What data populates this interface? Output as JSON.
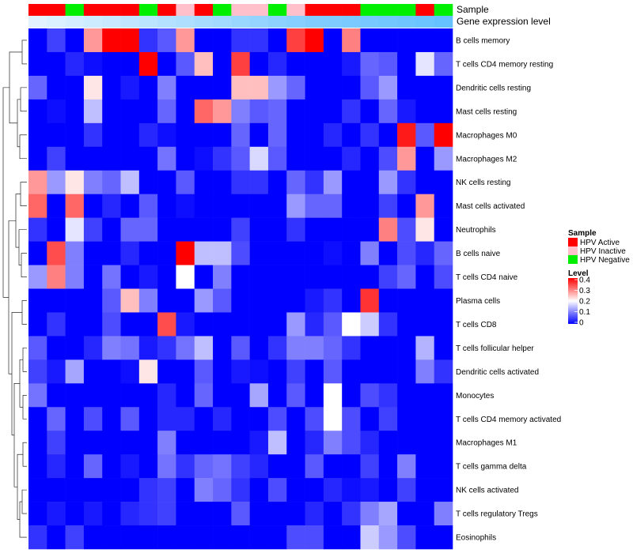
{
  "chart_data": {
    "type": "heatmap",
    "annotations": {
      "sample_label": "Sample",
      "gene_label": "Gene expression level",
      "sample": [
        "Active",
        "Active",
        "Negative",
        "Active",
        "Active",
        "Active",
        "Negative",
        "Active",
        "Inactive",
        "Active",
        "Negative",
        "Inactive",
        "Inactive",
        "Negative",
        "Inactive",
        "Active",
        "Active",
        "Active",
        "Negative",
        "Negative",
        "Negative",
        "Active",
        "Negative"
      ],
      "gene_expression": [
        0.05,
        0.1,
        0.15,
        0.2,
        0.25,
        0.3,
        0.35,
        0.4,
        0.45,
        0.5,
        0.55,
        0.6,
        0.65,
        0.7,
        0.75,
        0.8,
        0.82,
        0.85,
        0.88,
        0.9,
        0.93,
        0.96,
        1.0
      ]
    },
    "rows": [
      "B cells memory",
      "T cells CD4 memory resting",
      "Dendritic cells resting",
      "Mast cells resting",
      "Macrophages M0",
      "Macrophages M2",
      "NK cells resting",
      "Mast cells activated",
      "Neutrophils",
      "B cells naive",
      "T cells CD4 naive",
      "Plasma cells",
      "T cells CD8",
      "T cells follicular helper",
      "Dendritic cells activated",
      "Monocytes",
      "T cells CD4 memory activated",
      "Macrophages M1",
      "T cells gamma delta",
      "NK cells activated",
      "T cells regulatory  Tregs",
      "Eosinophils"
    ],
    "values": [
      [
        0,
        0.05,
        0,
        0.28,
        0.4,
        0.4,
        0.04,
        0.07,
        0.28,
        0,
        0,
        0.04,
        0.04,
        0,
        0.35,
        0.4,
        0,
        0.3,
        0,
        0,
        0,
        0,
        0
      ],
      [
        0,
        0,
        0.03,
        0.01,
        0,
        0,
        0.4,
        0,
        0.07,
        0.25,
        0,
        0.35,
        0,
        0.03,
        0,
        0,
        0,
        0.02,
        0.08,
        0.07,
        0,
        0.18,
        0.08
      ],
      [
        0.08,
        0,
        0,
        0.22,
        0,
        0.02,
        0,
        0.1,
        0,
        0,
        0,
        0.25,
        0.25,
        0.12,
        0.08,
        0,
        0,
        0,
        0.07,
        0.12,
        0,
        0,
        0
      ],
      [
        0,
        0.01,
        0,
        0.15,
        0,
        0,
        0,
        0.08,
        0,
        0.32,
        0.28,
        0.1,
        0.07,
        0.08,
        0,
        0,
        0,
        0.04,
        0,
        0.08,
        0.02,
        0,
        0
      ],
      [
        0,
        0,
        0,
        0.04,
        0,
        0,
        0.03,
        0.01,
        0,
        0,
        0,
        0.08,
        0,
        0.08,
        0,
        0,
        0.03,
        0,
        0.04,
        0,
        0.38,
        0.07,
        0.4
      ],
      [
        0,
        0.05,
        0,
        0,
        0,
        0,
        0,
        0.09,
        0,
        0.01,
        0.04,
        0.07,
        0.17,
        0.07,
        0,
        0,
        0,
        0.03,
        0,
        0.06,
        0.28,
        0,
        0.12
      ],
      [
        0.28,
        0.12,
        0.22,
        0.1,
        0.08,
        0.15,
        0,
        0,
        0.07,
        0,
        0,
        0.04,
        0.04,
        0,
        0.08,
        0.04,
        0.12,
        0,
        0,
        0.12,
        0.04,
        0,
        0
      ],
      [
        0.32,
        0,
        0.32,
        0,
        0.03,
        0,
        0.07,
        0,
        0.01,
        0,
        0,
        0,
        0,
        0,
        0.12,
        0.08,
        0.08,
        0,
        0,
        0.05,
        0,
        0.28,
        0
      ],
      [
        0.04,
        0,
        0.18,
        0.05,
        0,
        0.08,
        0.08,
        0,
        0,
        0,
        0,
        0.05,
        0,
        0,
        0.04,
        0,
        0,
        0,
        0,
        0.3,
        0.06,
        0.22,
        0
      ],
      [
        0,
        0.34,
        0.1,
        0,
        0,
        0.03,
        0,
        0,
        0.4,
        0.15,
        0.15,
        0.06,
        0,
        0,
        0,
        0,
        0.01,
        0,
        0.1,
        0,
        0.06,
        0.03,
        0.08
      ],
      [
        0.12,
        0.3,
        0.1,
        0,
        0.09,
        0,
        0.02,
        0,
        0.2,
        0,
        0.1,
        0,
        0,
        0,
        0,
        0,
        0,
        0,
        0,
        0.05,
        0.08,
        0,
        0.06
      ],
      [
        0,
        0,
        0,
        0,
        0.07,
        0.25,
        0.1,
        0,
        0,
        0.12,
        0.07,
        0,
        0,
        0,
        0,
        0.02,
        0.04,
        0,
        0.36,
        0,
        0,
        0,
        0
      ],
      [
        0,
        0.04,
        0,
        0,
        0.06,
        0,
        0,
        0.34,
        0.02,
        0,
        0,
        0,
        0,
        0,
        0.12,
        0.03,
        0.07,
        0.2,
        0.16,
        0.04,
        0,
        0,
        0
      ],
      [
        0.07,
        0,
        0,
        0.03,
        0.1,
        0.09,
        0.02,
        0.04,
        0.09,
        0.15,
        0,
        0.07,
        0,
        0.04,
        0.1,
        0.1,
        0.08,
        0.04,
        0,
        0,
        0,
        0.14,
        0
      ],
      [
        0.05,
        0.02,
        0.13,
        0,
        0,
        0.01,
        0.22,
        0,
        0,
        0.07,
        0,
        0.02,
        0.01,
        0,
        0.05,
        0,
        0.07,
        0,
        0,
        0,
        0,
        0.1,
        0.04
      ],
      [
        0.09,
        0,
        0,
        0,
        0,
        0,
        0,
        0.03,
        0,
        0.08,
        0,
        0,
        0.13,
        0,
        0.07,
        0,
        0.2,
        0,
        0.06,
        0.04,
        0,
        0,
        0
      ],
      [
        0,
        0.08,
        0,
        0.06,
        0,
        0.07,
        0,
        0.03,
        0.03,
        0,
        0.03,
        0,
        0,
        0.06,
        0,
        0.06,
        0.2,
        0.06,
        0,
        0.05,
        0,
        0,
        0
      ],
      [
        0,
        0.05,
        0,
        0,
        0,
        0,
        0,
        0.1,
        0,
        0,
        0,
        0,
        0.02,
        0.15,
        0,
        0.03,
        0.1,
        0.06,
        0.03,
        0,
        0,
        0,
        0
      ],
      [
        0,
        0.03,
        0,
        0.08,
        0,
        0.02,
        0,
        0.09,
        0.04,
        0.08,
        0.09,
        0.05,
        0.03,
        0,
        0,
        0.07,
        0,
        0,
        0.05,
        0,
        0.1,
        0,
        0
      ],
      [
        0,
        0,
        0,
        0,
        0,
        0,
        0.04,
        0.05,
        0,
        0.1,
        0.08,
        0.04,
        0,
        0.06,
        0,
        0,
        0.03,
        0.01,
        0.02,
        0,
        0.05,
        0,
        0
      ],
      [
        0,
        0.02,
        0,
        0.02,
        0,
        0.03,
        0.04,
        0.05,
        0,
        0,
        0,
        0.07,
        0,
        0,
        0,
        0.03,
        0,
        0.04,
        0.1,
        0.13,
        0,
        0,
        0.1
      ],
      [
        0.04,
        0,
        0.05,
        0,
        0,
        0,
        0,
        0,
        0,
        0,
        0,
        0,
        0,
        0,
        0.06,
        0.06,
        0,
        0,
        0.16,
        0.12,
        0.06,
        0,
        0
      ]
    ],
    "legend": {
      "sample_title": "Sample",
      "sample_items": [
        {
          "label": "HPV Active",
          "color": "#ff0000"
        },
        {
          "label": "HPV Inactive",
          "color": "#ffc0cb"
        },
        {
          "label": "HPV Negative",
          "color": "#00ee00"
        }
      ],
      "level_title": "Level",
      "level_ticks": [
        "0.4",
        "0.3",
        "0.2",
        "0.1",
        "0"
      ],
      "scale": {
        "min": 0,
        "max": 0.4,
        "low": "#0000ff",
        "mid": "#ffffff",
        "high": "#ff0000"
      }
    },
    "annotation_colors": {
      "Active": "#ff0000",
      "Inactive": "#ffc0cb",
      "Negative": "#00ee00",
      "gene_low": "#e8f6ff",
      "gene_high": "#66c2ff"
    }
  }
}
